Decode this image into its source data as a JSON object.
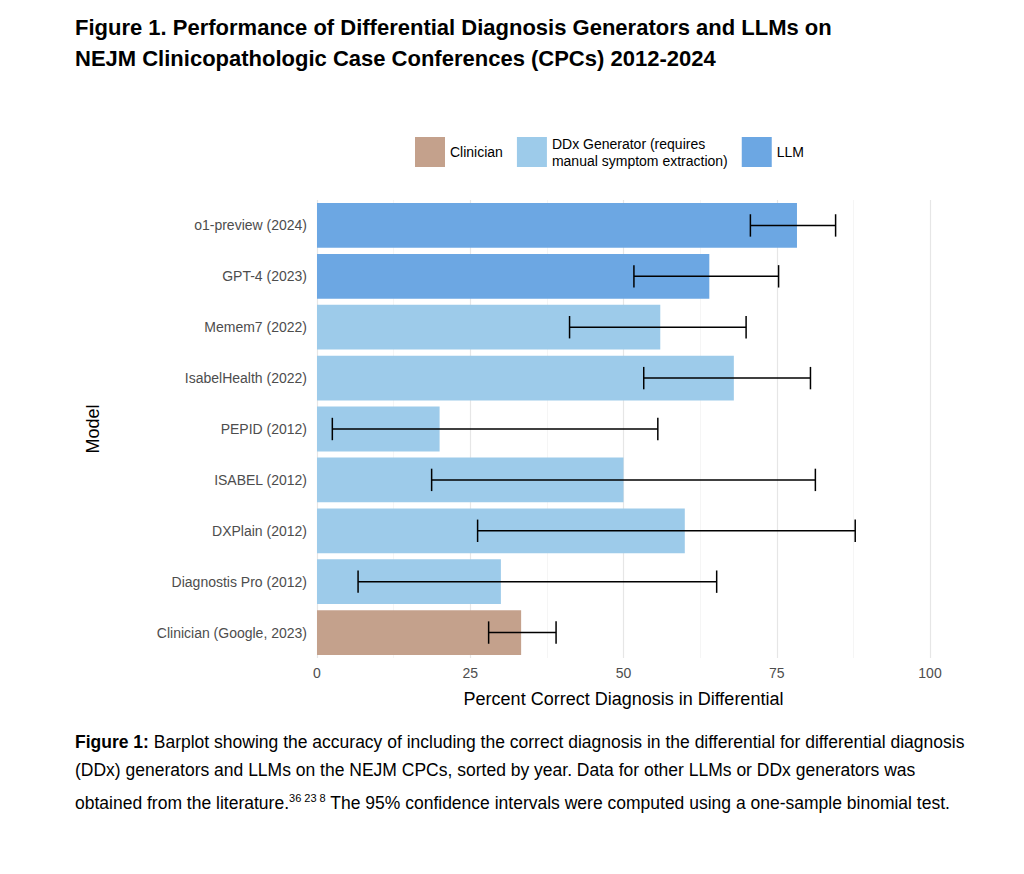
{
  "chart_data": {
    "type": "bar",
    "orientation": "horizontal",
    "title": [
      "Figure 1. Performance of Differential Diagnosis Generators and LLMs on",
      "NEJM Clinicopathologic Case Conferences (CPCs) 2012-2024"
    ],
    "x_label": "Percent Correct Diagnosis in Differential",
    "y_label": "Model",
    "categories": [
      "o1-preview (2024)",
      "GPT-4 (2023)",
      "Memem7 (2022)",
      "IsabelHealth (2022)",
      "PEPID (2012)",
      "ISABEL (2012)",
      "DXPlain (2012)",
      "Diagnostis Pro (2012)",
      "Clinician (Google, 2023)"
    ],
    "series": [
      {
        "name": "Clinician",
        "color": "#c4a18c",
        "values": [
          null,
          null,
          null,
          null,
          null,
          null,
          null,
          null,
          33.3
        ],
        "error_low": [
          null,
          null,
          null,
          null,
          null,
          null,
          null,
          null,
          28.0
        ],
        "error_high": [
          null,
          null,
          null,
          null,
          null,
          null,
          null,
          null,
          39.0
        ]
      },
      {
        "name": "DDx Generator (requires\nmanual symptom extraction)",
        "color": "#9dcbea",
        "values": [
          null,
          null,
          56,
          68,
          20,
          50,
          60,
          30,
          null
        ],
        "error_low": [
          null,
          null,
          41.2,
          53.3,
          2.5,
          18.7,
          26.2,
          6.7,
          null
        ],
        "error_high": [
          null,
          null,
          70.0,
          80.5,
          55.6,
          81.3,
          87.8,
          65.2,
          null
        ]
      },
      {
        "name": "LLM",
        "color": "#6ca7e3",
        "values": [
          78.3,
          64,
          null,
          null,
          null,
          null,
          null,
          null,
          null
        ],
        "error_low": [
          70.7,
          51.7,
          null,
          null,
          null,
          null,
          null,
          null,
          null
        ],
        "error_high": [
          84.6,
          75.3,
          null,
          null,
          null,
          null,
          null,
          null,
          null
        ]
      }
    ],
    "xlim": [
      0,
      100
    ],
    "xticks": [
      0,
      25,
      50,
      75,
      100
    ],
    "grid": true,
    "legend": "top",
    "caption": {
      "heading": "Figure 1:",
      "text": "Barplot showing the accuracy of including the correct diagnosis in the differential for differential diagnosis (DDx) generators and LLMs on the NEJM CPCs, sorted by year. Data for other LLMs or DDx generators was obtained from the literature.",
      "references": "36 23 8",
      "text_end": "The 95% confidence intervals were computed using a one-sample binomial test."
    }
  }
}
